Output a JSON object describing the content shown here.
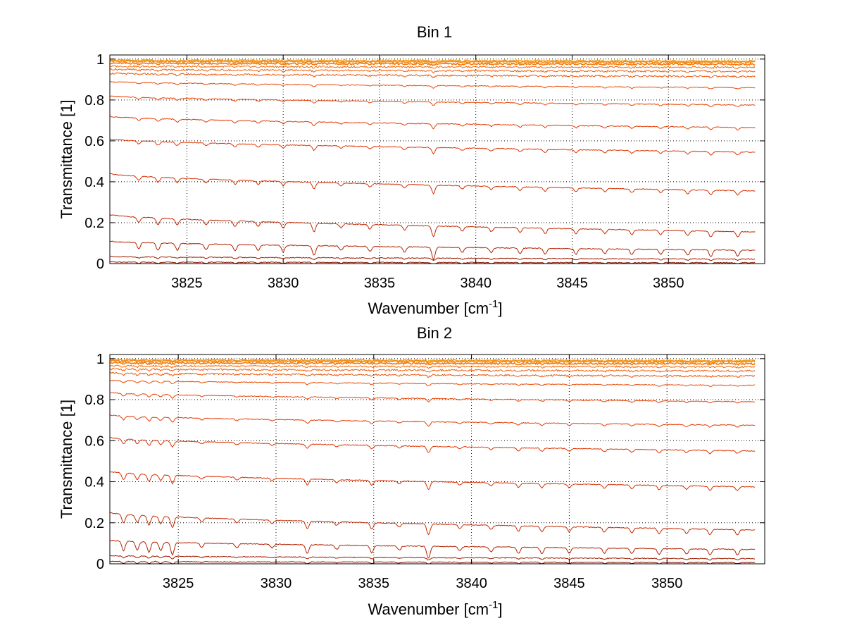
{
  "chart_data": [
    {
      "type": "line",
      "title": "Bin 1",
      "xlabel": "Wavenumber [cm",
      "xlabel_sup": "-1",
      "xlabel_tail": "]",
      "ylabel": "Transmittance [1]",
      "xlim": [
        3821,
        3855
      ],
      "ylim": [
        0,
        1.02
      ],
      "xticks": [
        3825,
        3830,
        3835,
        3840,
        3845,
        3850
      ],
      "xtick_labels": [
        "3825",
        "3830",
        "3835",
        "3840",
        "3845",
        "3850"
      ],
      "yticks": [
        0,
        0.2,
        0.4,
        0.6,
        0.8,
        1
      ],
      "ytick_labels": [
        "0",
        "0.2",
        "0.4",
        "0.6",
        "0.8",
        "1"
      ],
      "grid": true,
      "x_range": [
        3821,
        3854.5
      ],
      "absorption_lines": [
        {
          "x": 3822.5,
          "strength": 0.5
        },
        {
          "x": 3823.5,
          "strength": 0.6
        },
        {
          "x": 3824.5,
          "strength": 0.55
        },
        {
          "x": 3826.0,
          "strength": 0.45
        },
        {
          "x": 3827.5,
          "strength": 0.5
        },
        {
          "x": 3828.7,
          "strength": 0.45
        },
        {
          "x": 3830.0,
          "strength": 0.5
        },
        {
          "x": 3831.6,
          "strength": 0.8
        },
        {
          "x": 3833.0,
          "strength": 0.35
        },
        {
          "x": 3834.5,
          "strength": 0.4
        },
        {
          "x": 3836.3,
          "strength": 0.45
        },
        {
          "x": 3837.8,
          "strength": 1.0
        },
        {
          "x": 3839.3,
          "strength": 0.4
        },
        {
          "x": 3840.8,
          "strength": 0.4
        },
        {
          "x": 3842.3,
          "strength": 0.45
        },
        {
          "x": 3843.6,
          "strength": 0.5
        },
        {
          "x": 3845.2,
          "strength": 0.45
        },
        {
          "x": 3846.7,
          "strength": 0.4
        },
        {
          "x": 3848.1,
          "strength": 0.45
        },
        {
          "x": 3849.6,
          "strength": 0.4
        },
        {
          "x": 3851.0,
          "strength": 0.45
        },
        {
          "x": 3852.2,
          "strength": 0.55
        },
        {
          "x": 3853.6,
          "strength": 0.5
        }
      ],
      "series": [
        {
          "start": 0.995,
          "end": 0.99,
          "color": "#f0a020"
        },
        {
          "start": 0.99,
          "end": 0.985,
          "color": "#f58a15"
        },
        {
          "start": 0.98,
          "end": 0.975,
          "color": "#f47a10"
        },
        {
          "start": 0.965,
          "end": 0.96,
          "color": "#f06a0c"
        },
        {
          "start": 0.95,
          "end": 0.94,
          "color": "#ee5e0a"
        },
        {
          "start": 0.93,
          "end": 0.915,
          "color": "#ec5408"
        },
        {
          "start": 0.89,
          "end": 0.86,
          "color": "#ea4a06"
        },
        {
          "start": 0.82,
          "end": 0.775,
          "color": "#e84204"
        },
        {
          "start": 0.72,
          "end": 0.665,
          "color": "#e43a02"
        },
        {
          "start": 0.61,
          "end": 0.545,
          "color": "#df3300"
        },
        {
          "start": 0.44,
          "end": 0.355,
          "color": "#d42e00"
        },
        {
          "start": 0.24,
          "end": 0.155,
          "color": "#c42800"
        },
        {
          "start": 0.11,
          "end": 0.065,
          "color": "#b02200"
        },
        {
          "start": 0.035,
          "end": 0.022,
          "color": "#9a1c00"
        },
        {
          "start": 0.008,
          "end": 0.004,
          "color": "#841600"
        }
      ]
    },
    {
      "type": "line",
      "title": "Bin 2",
      "xlabel": "Wavenumber [cm",
      "xlabel_sup": "-1",
      "xlabel_tail": "]",
      "ylabel": "Transmittance [1]",
      "xlim": [
        3821.5,
        3855
      ],
      "ylim": [
        0,
        1.02
      ],
      "xticks": [
        3825,
        3830,
        3835,
        3840,
        3845,
        3850
      ],
      "xtick_labels": [
        "3825",
        "3830",
        "3835",
        "3840",
        "3845",
        "3850"
      ],
      "yticks": [
        0,
        0.2,
        0.4,
        0.6,
        0.8,
        1
      ],
      "ytick_labels": [
        "0",
        "0.2",
        "0.4",
        "0.6",
        "0.8",
        "1"
      ],
      "grid": true,
      "x_range": [
        3821.5,
        3854.5
      ],
      "absorption_lines": [
        {
          "x": 3822.2,
          "strength": 0.8
        },
        {
          "x": 3822.9,
          "strength": 0.7
        },
        {
          "x": 3823.5,
          "strength": 0.85
        },
        {
          "x": 3824.1,
          "strength": 0.7
        },
        {
          "x": 3824.7,
          "strength": 1.0
        },
        {
          "x": 3826.2,
          "strength": 0.35
        },
        {
          "x": 3828.0,
          "strength": 0.35
        },
        {
          "x": 3829.8,
          "strength": 0.3
        },
        {
          "x": 3831.6,
          "strength": 0.7
        },
        {
          "x": 3833.1,
          "strength": 0.35
        },
        {
          "x": 3834.9,
          "strength": 0.6
        },
        {
          "x": 3836.3,
          "strength": 0.35
        },
        {
          "x": 3837.8,
          "strength": 1.0
        },
        {
          "x": 3839.4,
          "strength": 0.35
        },
        {
          "x": 3841.0,
          "strength": 0.4
        },
        {
          "x": 3842.4,
          "strength": 0.5
        },
        {
          "x": 3843.6,
          "strength": 0.5
        },
        {
          "x": 3845.0,
          "strength": 0.45
        },
        {
          "x": 3846.8,
          "strength": 0.45
        },
        {
          "x": 3848.2,
          "strength": 0.45
        },
        {
          "x": 3849.6,
          "strength": 0.5
        },
        {
          "x": 3851.0,
          "strength": 0.45
        },
        {
          "x": 3852.2,
          "strength": 0.5
        },
        {
          "x": 3853.6,
          "strength": 0.45
        }
      ],
      "series": [
        {
          "start": 0.995,
          "end": 0.99,
          "color": "#f0a020"
        },
        {
          "start": 0.99,
          "end": 0.985,
          "color": "#f58a15"
        },
        {
          "start": 0.98,
          "end": 0.975,
          "color": "#f47a10"
        },
        {
          "start": 0.965,
          "end": 0.96,
          "color": "#f06a0c"
        },
        {
          "start": 0.95,
          "end": 0.94,
          "color": "#ee5e0a"
        },
        {
          "start": 0.93,
          "end": 0.915,
          "color": "#ec5408"
        },
        {
          "start": 0.895,
          "end": 0.87,
          "color": "#ea4a06"
        },
        {
          "start": 0.835,
          "end": 0.79,
          "color": "#e84204"
        },
        {
          "start": 0.725,
          "end": 0.675,
          "color": "#e43a02"
        },
        {
          "start": 0.615,
          "end": 0.55,
          "color": "#df3300"
        },
        {
          "start": 0.45,
          "end": 0.375,
          "color": "#d42e00"
        },
        {
          "start": 0.25,
          "end": 0.165,
          "color": "#c42800"
        },
        {
          "start": 0.115,
          "end": 0.07,
          "color": "#b02200"
        },
        {
          "start": 0.04,
          "end": 0.025,
          "color": "#9a1c00"
        },
        {
          "start": 0.012,
          "end": 0.006,
          "color": "#841600"
        }
      ]
    }
  ]
}
